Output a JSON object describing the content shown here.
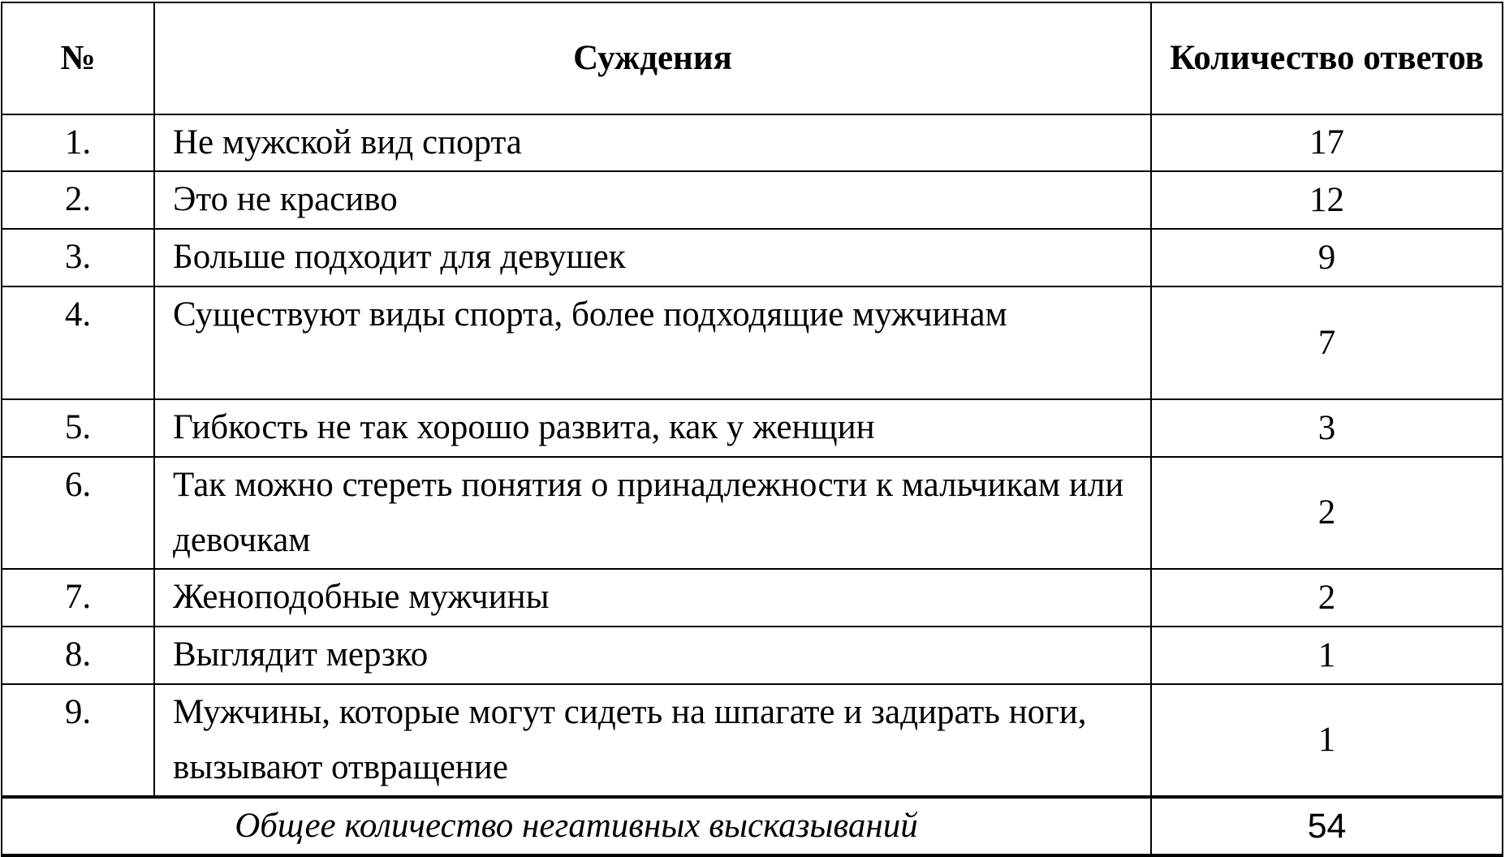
{
  "table": {
    "headers": {
      "num": "№",
      "statement": "Суждения",
      "count": "Количество ответов"
    },
    "rows": [
      {
        "num": "1.",
        "statement": "Не мужской вид спорта",
        "count": "17"
      },
      {
        "num": "2.",
        "statement": "Это не красиво",
        "count": "12"
      },
      {
        "num": "3.",
        "statement": "Больше подходит для девушек",
        "count": "9"
      },
      {
        "num": "4.",
        "statement": "Существуют виды спорта, более подходящие мужчинам",
        "count": "7"
      },
      {
        "num": "5.",
        "statement": "Гибкость не так хорошо развита, как у женщин",
        "count": "3"
      },
      {
        "num": "6.",
        "statement": "Так можно стереть понятия о принадлежности к мальчикам или девочкам",
        "count": "2"
      },
      {
        "num": "7.",
        "statement": "Женоподобные мужчины",
        "count": "2"
      },
      {
        "num": "8.",
        "statement": "Выглядит мерзко",
        "count": "1"
      },
      {
        "num": "9.",
        "statement": "Мужчины, которые могут сидеть на шпагате и задирать ноги, вызывают отвращение",
        "count": "1"
      }
    ],
    "total": {
      "label": "Общее количество негативных высказываний",
      "value": "54"
    }
  }
}
